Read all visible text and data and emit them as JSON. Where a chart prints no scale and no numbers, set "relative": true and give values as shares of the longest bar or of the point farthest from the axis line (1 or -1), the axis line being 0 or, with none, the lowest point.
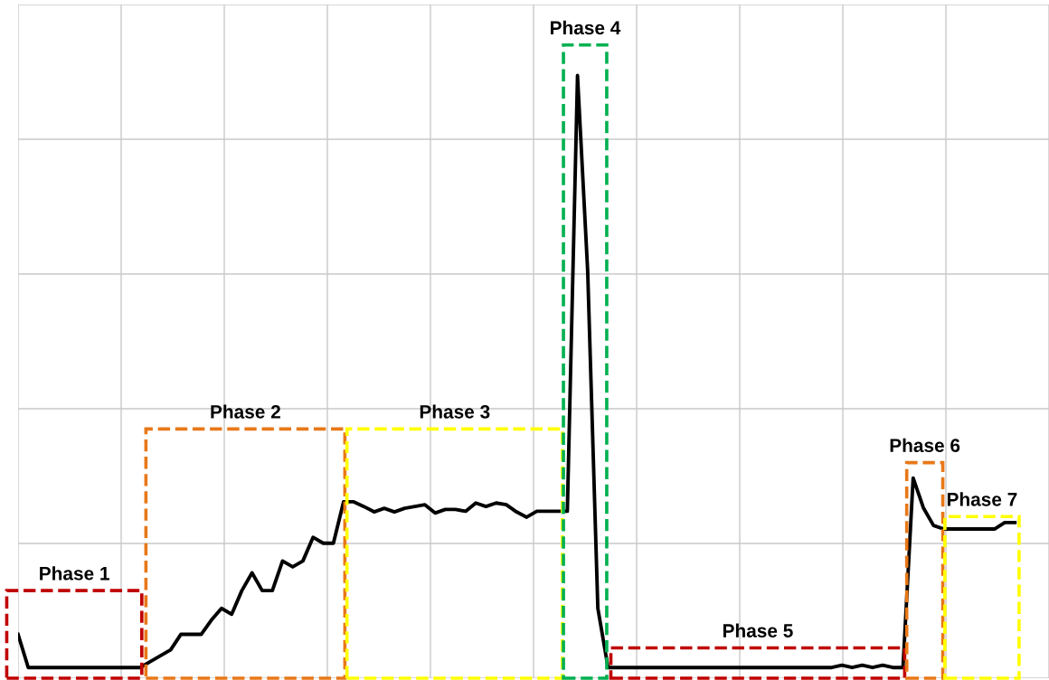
{
  "chart_data": {
    "type": "line",
    "relative": true,
    "grid": true,
    "marker": "none",
    "line_style": "solid",
    "annotations": [
      "Phase 1",
      "Phase 2",
      "Phase 3",
      "Phase 4",
      "Phase 5",
      "Phase 6",
      "Phase 7"
    ],
    "categories": [
      null,
      null,
      null,
      null,
      null,
      null,
      null,
      null,
      null,
      null,
      null,
      null,
      null,
      null,
      null,
      null,
      null,
      null,
      null,
      null,
      null,
      null,
      null,
      null,
      null,
      null,
      null,
      null,
      null,
      null,
      null,
      null,
      null,
      null,
      null,
      null,
      null,
      null,
      null,
      null,
      null,
      null,
      null,
      null,
      null,
      null,
      null,
      null,
      null,
      null,
      null,
      null,
      null,
      null,
      null,
      null,
      null,
      null,
      null,
      null,
      null,
      null,
      null,
      null,
      null,
      null,
      null,
      null,
      null,
      null,
      null,
      null,
      null,
      null,
      null,
      null,
      null,
      null,
      null,
      null,
      null,
      null,
      null,
      null,
      null,
      null,
      null,
      null,
      null,
      null,
      null,
      null,
      null,
      null,
      null,
      null,
      null,
      null,
      null
    ],
    "series": [
      {
        "color": "#000000",
        "values": [
          0.056,
          0,
          0,
          0,
          0,
          0,
          0,
          0,
          0,
          0,
          0,
          0,
          0,
          0.01,
          0.02,
          0.03,
          0.056,
          0.056,
          0.056,
          0.08,
          0.1,
          0.09,
          0.13,
          0.16,
          0.13,
          0.13,
          0.18,
          0.17,
          0.18,
          0.22,
          0.21,
          0.21,
          0.28,
          0.28,
          0.272,
          0.263,
          0.269,
          0.263,
          0.269,
          0.272,
          0.275,
          0.261,
          0.267,
          0.267,
          0.264,
          0.278,
          0.272,
          0.278,
          0.275,
          0.263,
          0.254,
          0.264,
          0.264,
          0.264,
          0.264,
          1.0,
          0.67,
          0.1,
          0,
          0,
          0,
          0,
          0,
          0,
          0,
          0,
          0,
          0,
          0,
          0,
          0,
          0,
          0,
          0,
          0,
          0,
          0,
          0,
          0,
          0,
          0,
          0.004,
          0,
          0.004,
          0,
          0.004,
          0,
          0,
          0.32,
          0.27,
          0.24,
          0.234,
          0.234,
          0.234,
          0.234,
          0.234,
          0.234,
          0.245,
          0.245
        ]
      }
    ],
    "legend": false
  }
}
